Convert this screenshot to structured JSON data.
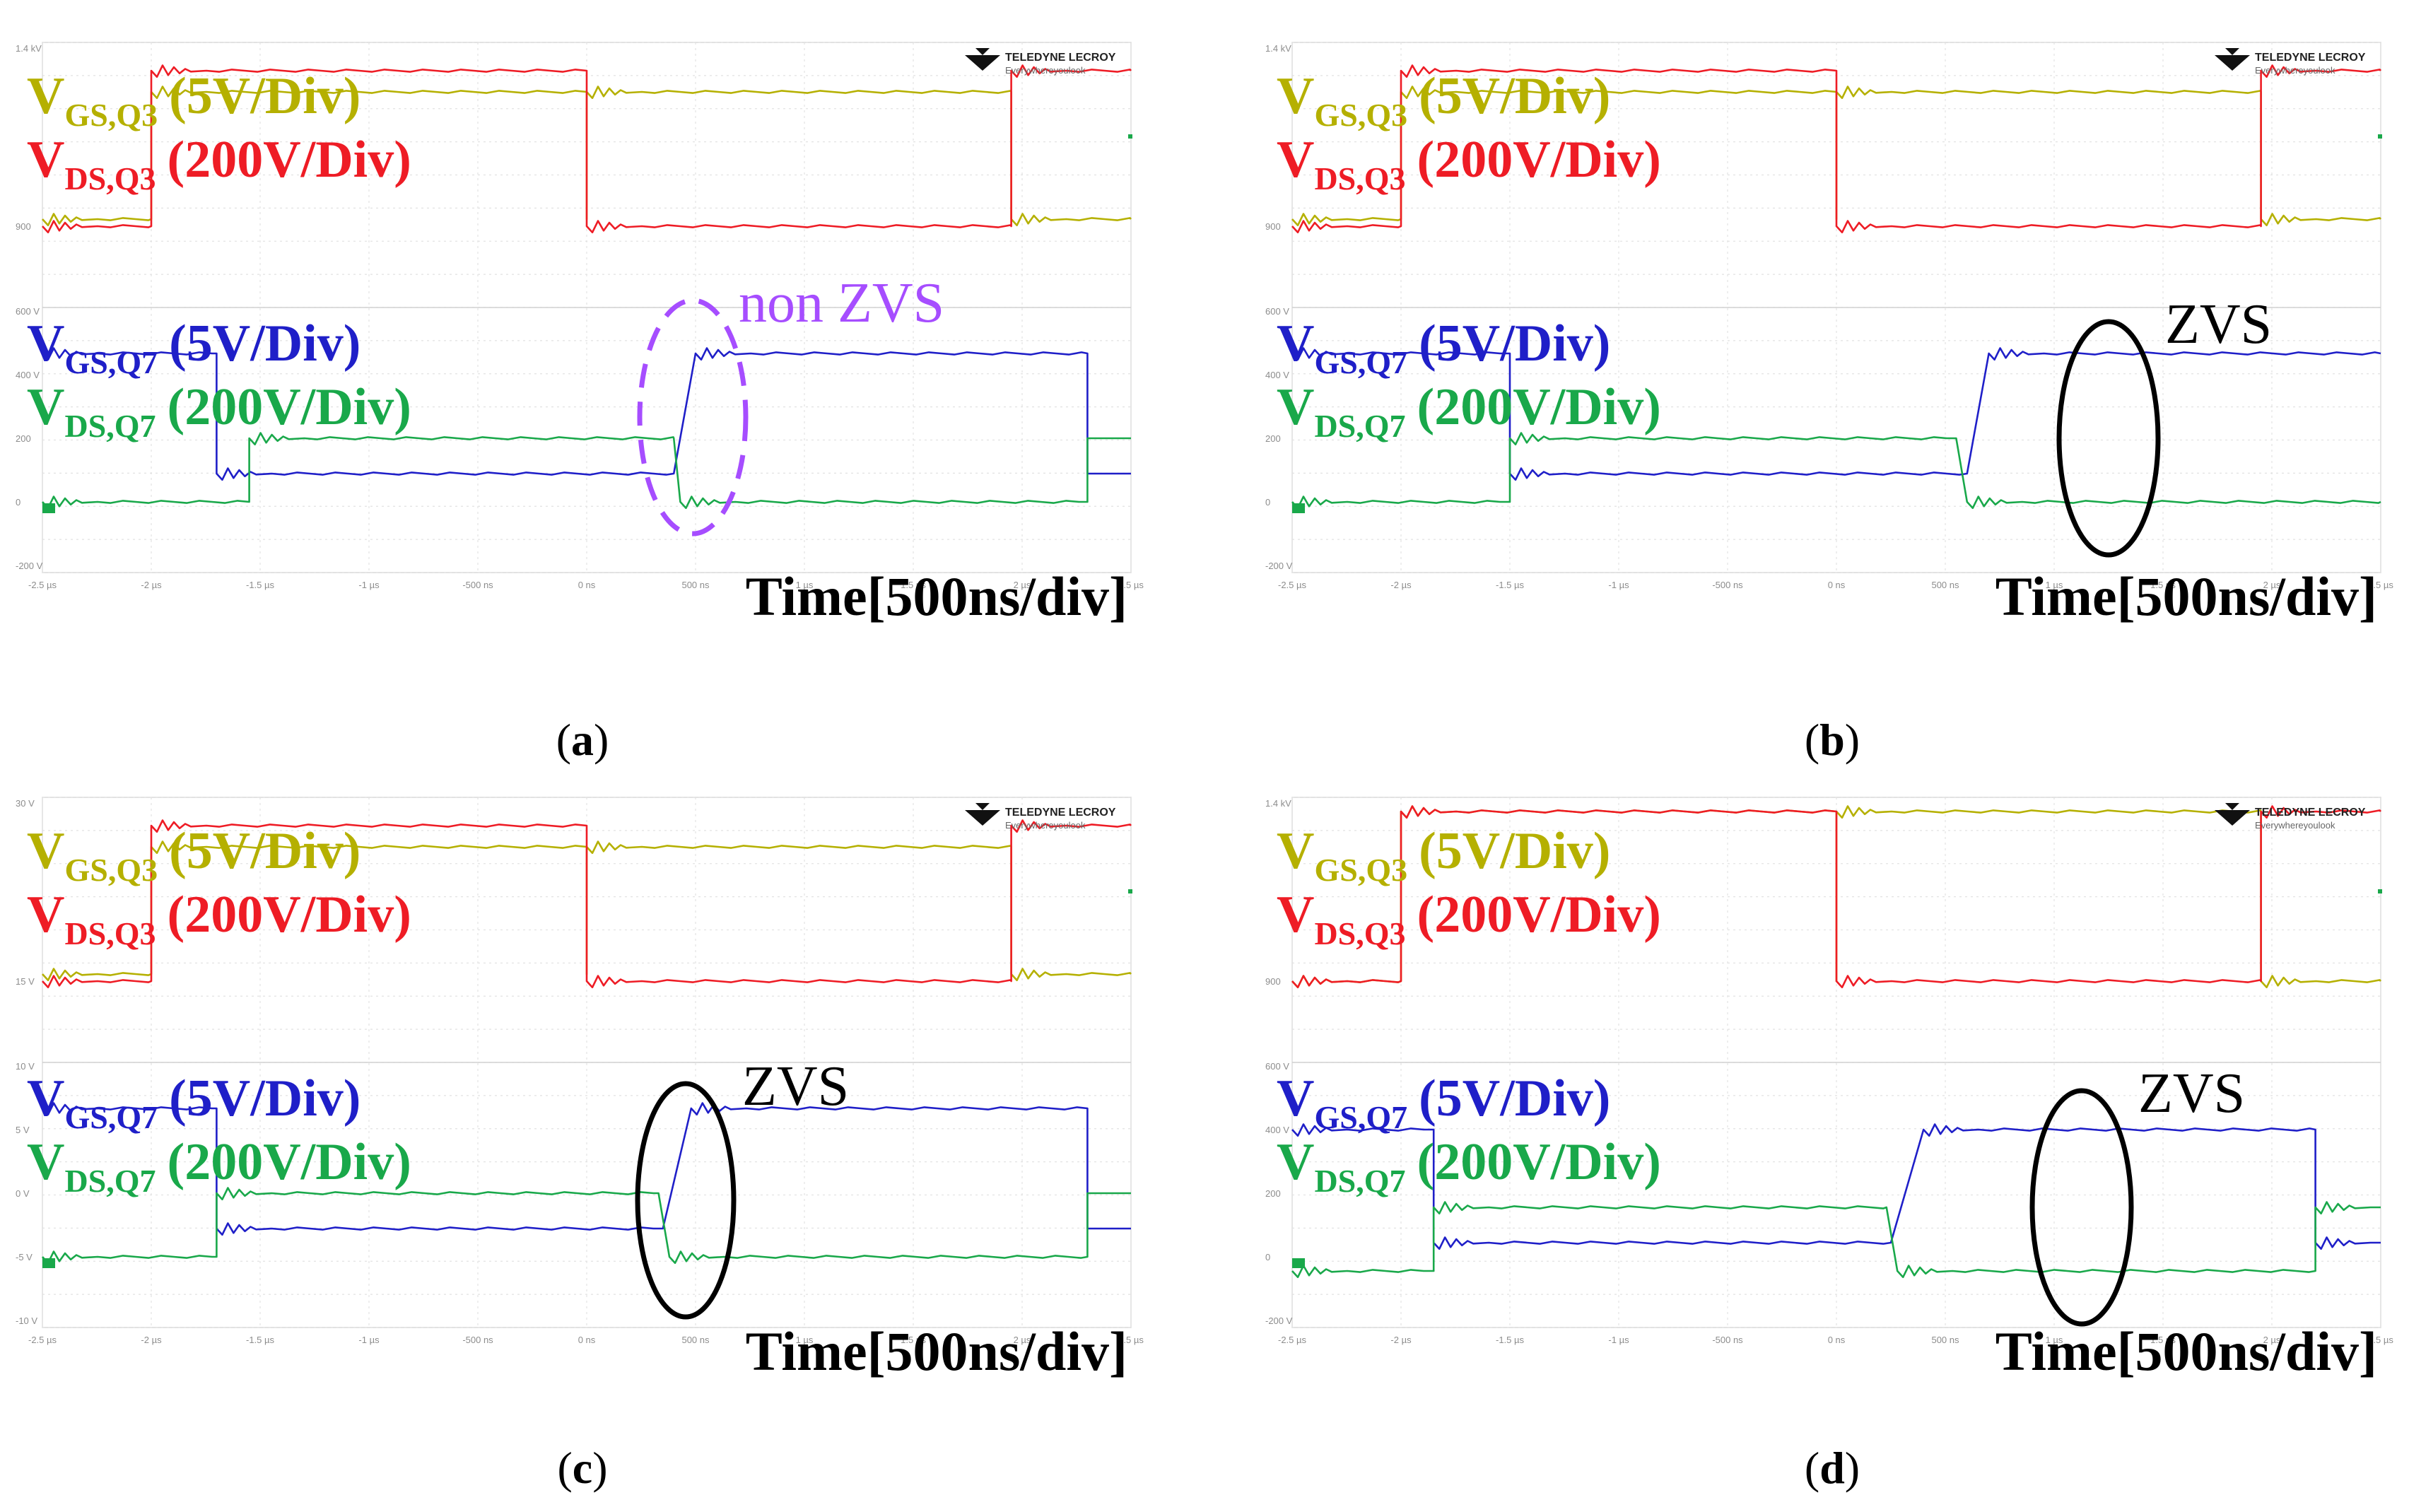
{
  "figure": {
    "panels": [
      {
        "id": "a",
        "caption_letter": "a",
        "top_ticks": [
          "1.4 kV",
          "900"
        ],
        "bottom_ticks": [
          "600 V",
          "400 V",
          "200",
          "0",
          "-200 V"
        ],
        "x_ticks": [
          "-2.5 µs",
          "-2 µs",
          "-1.5 µs",
          "-1 µs",
          "-500 ns",
          "0 ns",
          "500 ns",
          "1 µs",
          "1.5 µs",
          "2 µs",
          "2.5 µs"
        ],
        "annotation": "non ZVS",
        "annotation_style": "dashed-ellipse",
        "annotation_color": "#a64dff"
      },
      {
        "id": "b",
        "caption_letter": "b",
        "top_ticks": [
          "1.4 kV",
          "900"
        ],
        "bottom_ticks": [
          "600 V",
          "400 V",
          "200",
          "0",
          "-200 V"
        ],
        "x_ticks": [
          "-2.5 µs",
          "-2 µs",
          "-1.5 µs",
          "-1 µs",
          "-500 ns",
          "0 ns",
          "500 ns",
          "1 µs",
          "1.5 µs",
          "2 µs",
          "2.5 µs"
        ],
        "annotation": "ZVS",
        "annotation_style": "solid-ellipse",
        "annotation_color": "#000000"
      },
      {
        "id": "c",
        "caption_letter": "c",
        "top_ticks": [
          "30 V",
          "15 V"
        ],
        "bottom_ticks": [
          "10 V",
          "5 V",
          "0 V",
          "-5 V",
          "-10 V"
        ],
        "x_ticks": [
          "-2.5 µs",
          "-2 µs",
          "-1.5 µs",
          "-1 µs",
          "-500 ns",
          "0 ns",
          "500 ns",
          "1 µs",
          "1.5 µs",
          "2 µs",
          "2.5 µs"
        ],
        "annotation": "ZVS",
        "annotation_style": "solid-ellipse",
        "annotation_color": "#000000"
      },
      {
        "id": "d",
        "caption_letter": "d",
        "top_ticks": [
          "1.4 kV",
          "900"
        ],
        "bottom_ticks": [
          "600 V",
          "400 V",
          "200",
          "0",
          "-200 V"
        ],
        "x_ticks": [
          "-2.5 µs",
          "-2 µs",
          "-1.5 µs",
          "-1 µs",
          "-500 ns",
          "0 ns",
          "500 ns",
          "1 µs",
          "1.5 µs",
          "2 µs",
          "2.5 µs"
        ],
        "annotation": "ZVS",
        "annotation_style": "solid-ellipse",
        "annotation_color": "#000000"
      }
    ],
    "labels": {
      "vgs_q3": {
        "main": "V",
        "sub": "GS,Q3",
        "div": "(5V/Div)",
        "color": "#b5b000"
      },
      "vds_q3": {
        "main": "V",
        "sub": "DS,Q3",
        "div": "(200V/Div)",
        "color": "#ee1c25"
      },
      "vgs_q7": {
        "main": "V",
        "sub": "GS,Q7",
        "div": "(5V/Div)",
        "color": "#1f1fc8"
      },
      "vds_q7": {
        "main": "V",
        "sub": "DS,Q7",
        "div": "(200V/Div)",
        "color": "#19a84a"
      }
    },
    "time_label": "Time[500ns/div]",
    "logo": {
      "brand": "TELEDYNE LECROY",
      "tagline": "Everywhereyoulook"
    }
  },
  "chart_data": [
    {
      "type": "line",
      "panel": "a",
      "x_unit": "ns",
      "xlim": [
        -2500,
        2500
      ],
      "series": [
        {
          "name": "VGS,Q3",
          "color": "#b5b000",
          "segments": [
            [
              -2500,
              0
            ],
            [
              -2000,
              0
            ],
            [
              -2000,
              1
            ],
            [
              0,
              1
            ],
            [
              0,
              0
            ],
            [
              0,
              1
            ],
            [
              1950,
              1
            ],
            [
              1950,
              0
            ],
            [
              2500,
              0
            ]
          ]
        },
        {
          "name": "VDS,Q3",
          "color": "#ee1c25",
          "segments": [
            [
              -2500,
              0
            ],
            [
              -2000,
              0
            ],
            [
              -2000,
              1
            ],
            [
              0,
              1
            ],
            [
              0,
              0
            ],
            [
              1950,
              0
            ],
            [
              1950,
              1
            ],
            [
              2500,
              1
            ]
          ]
        },
        {
          "name": "VGS,Q7",
          "color": "#1f1fc8",
          "segments": [
            [
              -2500,
              1
            ],
            [
              -1700,
              1
            ],
            [
              -1700,
              0
            ],
            [
              400,
              0
            ],
            [
              500,
              1
            ],
            [
              2300,
              1
            ],
            [
              2300,
              0
            ],
            [
              2500,
              0
            ]
          ]
        },
        {
          "name": "VDS,Q7",
          "color": "#19a84a",
          "segments": [
            [
              -2500,
              0
            ],
            [
              -1550,
              0
            ],
            [
              -1550,
              1
            ],
            [
              400,
              1
            ],
            [
              430,
              0
            ],
            [
              2300,
              0
            ],
            [
              2300,
              1
            ],
            [
              2500,
              1
            ]
          ]
        }
      ]
    },
    {
      "type": "line",
      "panel": "b",
      "x_unit": "ns",
      "xlim": [
        -2500,
        2500
      ],
      "series": [
        {
          "name": "VGS,Q3",
          "color": "#b5b000",
          "segments": [
            [
              -2500,
              0
            ],
            [
              -2000,
              0
            ],
            [
              -2000,
              1
            ],
            [
              0,
              1
            ],
            [
              0,
              0
            ],
            [
              0,
              1
            ],
            [
              1950,
              1
            ],
            [
              1950,
              0
            ],
            [
              2500,
              0
            ]
          ]
        },
        {
          "name": "VDS,Q3",
          "color": "#ee1c25",
          "segments": [
            [
              -2500,
              0
            ],
            [
              -2000,
              0
            ],
            [
              -2000,
              1
            ],
            [
              0,
              1
            ],
            [
              0,
              0
            ],
            [
              1950,
              0
            ],
            [
              1950,
              1
            ],
            [
              2500,
              1
            ]
          ]
        },
        {
          "name": "VGS,Q7",
          "color": "#1f1fc8",
          "segments": [
            [
              -2500,
              1
            ],
            [
              -1500,
              1
            ],
            [
              -1500,
              0
            ],
            [
              600,
              0
            ],
            [
              700,
              1
            ],
            [
              2500,
              1
            ]
          ]
        },
        {
          "name": "VDS,Q7",
          "color": "#19a84a",
          "segments": [
            [
              -2500,
              0
            ],
            [
              -1500,
              0
            ],
            [
              -1500,
              1
            ],
            [
              550,
              1
            ],
            [
              600,
              0
            ],
            [
              2500,
              0
            ]
          ]
        }
      ]
    },
    {
      "type": "line",
      "panel": "c",
      "x_unit": "ns",
      "xlim": [
        -2500,
        2500
      ],
      "series": [
        {
          "name": "VGS,Q3",
          "color": "#b5b000",
          "segments": [
            [
              -2500,
              0
            ],
            [
              -2000,
              0
            ],
            [
              -2000,
              1
            ],
            [
              0,
              1
            ],
            [
              0,
              0
            ],
            [
              0,
              1
            ],
            [
              1950,
              1
            ],
            [
              1950,
              0
            ],
            [
              2500,
              0
            ]
          ]
        },
        {
          "name": "VDS,Q3",
          "color": "#ee1c25",
          "segments": [
            [
              -2500,
              0
            ],
            [
              -2000,
              0
            ],
            [
              -2000,
              1
            ],
            [
              0,
              1
            ],
            [
              0,
              0
            ],
            [
              1950,
              0
            ],
            [
              1950,
              1
            ],
            [
              2500,
              1
            ]
          ]
        },
        {
          "name": "VGS,Q7",
          "color": "#1f1fc8",
          "segments": [
            [
              -2500,
              1
            ],
            [
              -1700,
              1
            ],
            [
              -1700,
              0
            ],
            [
              350,
              0
            ],
            [
              480,
              1
            ],
            [
              2300,
              1
            ],
            [
              2300,
              0
            ],
            [
              2500,
              0
            ]
          ]
        },
        {
          "name": "VDS,Q7",
          "color": "#19a84a",
          "segments": [
            [
              -2500,
              0
            ],
            [
              -1700,
              0
            ],
            [
              -1700,
              1
            ],
            [
              330,
              1
            ],
            [
              380,
              0
            ],
            [
              2300,
              0
            ],
            [
              2300,
              1
            ],
            [
              2500,
              1
            ]
          ]
        }
      ]
    },
    {
      "type": "line",
      "panel": "d",
      "x_unit": "ns",
      "xlim": [
        -2500,
        2500
      ],
      "series": [
        {
          "name": "VGS,Q3",
          "color": "#b5b000",
          "segments": [
            [
              -2500,
              0
            ],
            [
              -2000,
              0
            ],
            [
              -2000,
              1
            ],
            [
              0,
              1
            ],
            [
              0,
              0
            ],
            [
              0,
              1
            ],
            [
              1950,
              1
            ],
            [
              1950,
              0
            ],
            [
              2500,
              0
            ]
          ]
        },
        {
          "name": "VDS,Q3",
          "color": "#ee1c25",
          "segments": [
            [
              -2500,
              0
            ],
            [
              -2000,
              0
            ],
            [
              -2000,
              1
            ],
            [
              0,
              1
            ],
            [
              0,
              0
            ],
            [
              1950,
              0
            ],
            [
              1950,
              1
            ],
            [
              2500,
              1
            ]
          ]
        },
        {
          "name": "VGS,Q7",
          "color": "#1f1fc8",
          "segments": [
            [
              -2500,
              1
            ],
            [
              -1850,
              1
            ],
            [
              -1850,
              0
            ],
            [
              250,
              0
            ],
            [
              400,
              1
            ],
            [
              2200,
              1
            ],
            [
              2200,
              0
            ],
            [
              2500,
              0
            ]
          ]
        },
        {
          "name": "VDS,Q7",
          "color": "#19a84a",
          "segments": [
            [
              -2500,
              0
            ],
            [
              -1850,
              0
            ],
            [
              -1850,
              1
            ],
            [
              230,
              1
            ],
            [
              280,
              0
            ],
            [
              2200,
              0
            ],
            [
              2200,
              1
            ],
            [
              2500,
              1
            ]
          ]
        }
      ]
    }
  ]
}
